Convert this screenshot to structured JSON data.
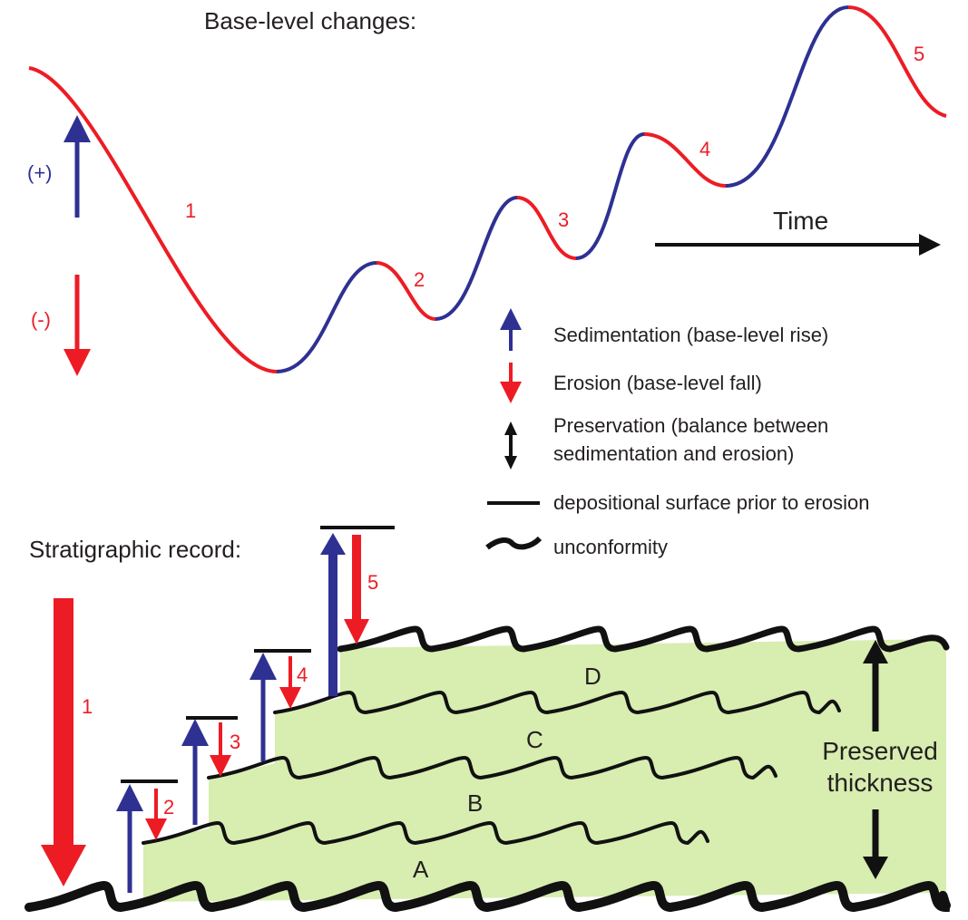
{
  "colors": {
    "rise": "#2e3192",
    "fall": "#ed1c24",
    "sediment": "#d8edb0",
    "line": "#111111"
  },
  "top": {
    "title": "Base-level changes:",
    "plus_label": "(+)",
    "minus_label": "(-)",
    "time_label": "Time",
    "event_labels": [
      "1",
      "2",
      "3",
      "4",
      "5"
    ]
  },
  "legend": {
    "sedimentation": "Sedimentation (base-level rise)",
    "erosion": "Erosion (base-level fall)",
    "preservation_line1": "Preservation (balance between",
    "preservation_line2": "sedimentation and erosion)",
    "surface": "depositional surface prior to erosion",
    "unconformity": "unconformity"
  },
  "bottom": {
    "title": "Stratigraphic record:",
    "event_labels": [
      "1",
      "2",
      "3",
      "4",
      "5"
    ],
    "units": [
      "A",
      "B",
      "C",
      "D"
    ],
    "preserved_line1": "Preserved",
    "preserved_line2": "thickness"
  }
}
